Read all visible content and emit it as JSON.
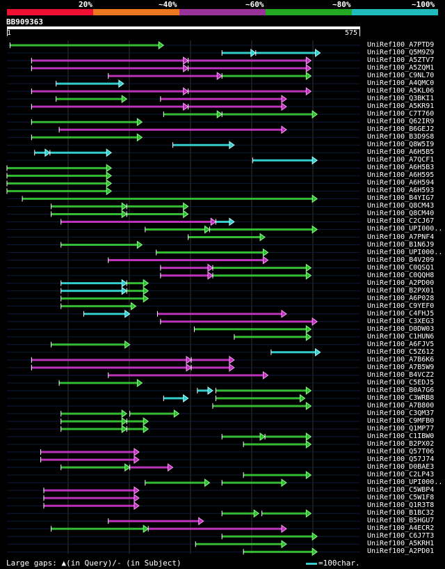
{
  "legend": {
    "colors": [
      "#ee1133",
      "#ee7722",
      "#993399",
      "#22aa22",
      "#22bbbb"
    ],
    "labels": [
      "20%",
      "~40%",
      "~60%",
      "~80%",
      "~100%"
    ]
  },
  "query": {
    "id": "BB909363",
    "start": "1",
    "end": "575",
    "length": 575
  },
  "colors": {
    "green": "#33bb33",
    "magenta": "#bb33bb",
    "cyan": "#33cccc",
    "greenHead": "#88ff88",
    "magentaHead": "#ff99ff",
    "cyanHead": "#aaffff"
  },
  "hits": [
    {
      "id": "UniRef100_A7PTD9",
      "segs": [
        [
          5,
          255,
          "g"
        ]
      ]
    },
    {
      "id": "UniRef100_Q5M9Z9",
      "segs": [
        [
          350,
          405,
          "c"
        ],
        [
          405,
          510,
          "c"
        ]
      ]
    },
    {
      "id": "UniRef100_A5ZTV7",
      "segs": [
        [
          40,
          295,
          "m"
        ],
        [
          295,
          495,
          "m"
        ]
      ]
    },
    {
      "id": "UniRef100_A5ZQM1",
      "segs": [
        [
          40,
          295,
          "m"
        ],
        [
          295,
          495,
          "m"
        ]
      ]
    },
    {
      "id": "UniRef100_C9NL70",
      "segs": [
        [
          165,
          350,
          "m"
        ],
        [
          350,
          495,
          "g"
        ]
      ]
    },
    {
      "id": "UniRef100_A4QMC0",
      "segs": [
        [
          80,
          190,
          "c"
        ]
      ]
    },
    {
      "id": "UniRef100_A5KL06",
      "segs": [
        [
          40,
          295,
          "m"
        ],
        [
          295,
          495,
          "m"
        ]
      ]
    },
    {
      "id": "UniRef100_Q3BKI1",
      "segs": [
        [
          80,
          195,
          "g"
        ],
        [
          250,
          455,
          "m"
        ]
      ]
    },
    {
      "id": "UniRef100_A5KR91",
      "segs": [
        [
          40,
          295,
          "m"
        ],
        [
          295,
          455,
          "m"
        ]
      ]
    },
    {
      "id": "UniRef100_C7T760",
      "segs": [
        [
          255,
          350,
          "g"
        ],
        [
          350,
          505,
          "g"
        ]
      ]
    },
    {
      "id": "UniRef100_Q62IR9",
      "segs": [
        [
          40,
          220,
          "g"
        ]
      ]
    },
    {
      "id": "UniRef100_B6GEJ2",
      "segs": [
        [
          85,
          455,
          "m"
        ]
      ]
    },
    {
      "id": "UniRef100_B3D9S8",
      "segs": [
        [
          40,
          220,
          "g"
        ]
      ]
    },
    {
      "id": "UniRef100_Q8W5I9",
      "segs": [
        [
          270,
          370,
          "c"
        ]
      ]
    },
    {
      "id": "UniRef100_A6H5B5",
      "segs": [
        [
          45,
          70,
          "c"
        ],
        [
          70,
          170,
          "c"
        ]
      ]
    },
    {
      "id": "UniRef100_A7QCF1",
      "segs": [
        [
          400,
          505,
          "c"
        ]
      ]
    },
    {
      "id": "UniRef100_A6H5B3",
      "segs": [
        [
          0,
          170,
          "g"
        ]
      ]
    },
    {
      "id": "UniRef100_A6H595",
      "segs": [
        [
          0,
          170,
          "g"
        ]
      ]
    },
    {
      "id": "UniRef100_A6H594",
      "segs": [
        [
          0,
          170,
          "g"
        ]
      ]
    },
    {
      "id": "UniRef100_A6H593",
      "segs": [
        [
          0,
          170,
          "g"
        ]
      ]
    },
    {
      "id": "UniRef100_B4YIG7",
      "segs": [
        [
          25,
          505,
          "g"
        ]
      ]
    },
    {
      "id": "UniRef100_Q8CM43",
      "segs": [
        [
          72,
          195,
          "g"
        ],
        [
          195,
          295,
          "g"
        ]
      ]
    },
    {
      "id": "UniRef100_Q8CM40",
      "segs": [
        [
          72,
          195,
          "g"
        ],
        [
          195,
          295,
          "g"
        ]
      ]
    },
    {
      "id": "UniRef100_C2CJ67",
      "segs": [
        [
          88,
          340,
          "m"
        ],
        [
          340,
          370,
          "c"
        ]
      ]
    },
    {
      "id": "UniRef100_UPI000..",
      "segs": [
        [
          225,
          330,
          "g"
        ],
        [
          330,
          505,
          "g"
        ]
      ]
    },
    {
      "id": "UniRef100_A7PNF4",
      "segs": [
        [
          295,
          420,
          "g"
        ]
      ]
    },
    {
      "id": "UniRef100_B1N6J9",
      "segs": [
        [
          88,
          220,
          "g"
        ]
      ]
    },
    {
      "id": "UniRef100_UPI000..",
      "segs": [
        [
          243,
          425,
          "g"
        ]
      ]
    },
    {
      "id": "UniRef100_B4V209",
      "segs": [
        [
          165,
          425,
          "m"
        ]
      ]
    },
    {
      "id": "UniRef100_C0QSQ1",
      "segs": [
        [
          250,
          335,
          "m"
        ],
        [
          335,
          495,
          "g"
        ]
      ]
    },
    {
      "id": "UniRef100_C0QQH8",
      "segs": [
        [
          250,
          335,
          "m"
        ],
        [
          335,
          495,
          "g"
        ]
      ]
    },
    {
      "id": "UniRef100_A2PD00",
      "segs": [
        [
          88,
          195,
          "c"
        ],
        [
          195,
          230,
          "g"
        ]
      ]
    },
    {
      "id": "UniRef100_B2PX01",
      "segs": [
        [
          88,
          195,
          "c"
        ],
        [
          195,
          230,
          "g"
        ]
      ]
    },
    {
      "id": "UniRef100_A6P028",
      "segs": [
        [
          88,
          230,
          "g"
        ]
      ]
    },
    {
      "id": "UniRef100_C9YEF0",
      "segs": [
        [
          88,
          210,
          "g"
        ]
      ]
    },
    {
      "id": "UniRef100_C4FHJ5",
      "segs": [
        [
          125,
          200,
          "c"
        ],
        [
          245,
          455,
          "m"
        ]
      ]
    },
    {
      "id": "UniRef100_C3XEG3",
      "segs": [
        [
          250,
          505,
          "m"
        ]
      ]
    },
    {
      "id": "UniRef100_D0DW03",
      "segs": [
        [
          305,
          495,
          "g"
        ]
      ]
    },
    {
      "id": "UniRef100_C1HUN6",
      "segs": [
        [
          370,
          495,
          "g"
        ]
      ]
    },
    {
      "id": "UniRef100_A6FJV5",
      "segs": [
        [
          72,
          200,
          "g"
        ]
      ]
    },
    {
      "id": "UniRef100_C5Z612",
      "segs": [
        [
          430,
          510,
          "c"
        ]
      ]
    },
    {
      "id": "UniRef100_A7B6K6",
      "segs": [
        [
          40,
          300,
          "m"
        ],
        [
          300,
          370,
          "m"
        ]
      ]
    },
    {
      "id": "UniRef100_A7B5W9",
      "segs": [
        [
          40,
          300,
          "m"
        ],
        [
          300,
          370,
          "m"
        ]
      ]
    },
    {
      "id": "UniRef100_B4VCZ2",
      "segs": [
        [
          165,
          425,
          "m"
        ]
      ]
    },
    {
      "id": "UniRef100_C5EDJ5",
      "segs": [
        [
          85,
          220,
          "g"
        ]
      ]
    },
    {
      "id": "UniRef100_B0A7G6",
      "segs": [
        [
          310,
          335,
          "c"
        ],
        [
          340,
          495,
          "g"
        ]
      ]
    },
    {
      "id": "UniRef100_C3WRB8",
      "segs": [
        [
          255,
          295,
          "c"
        ],
        [
          340,
          485,
          "g"
        ]
      ]
    },
    {
      "id": "UniRef100_A7B800",
      "segs": [
        [
          335,
          495,
          "g"
        ]
      ]
    },
    {
      "id": "UniRef100_C3QM37",
      "segs": [
        [
          88,
          195,
          "g"
        ],
        [
          200,
          280,
          "g"
        ]
      ]
    },
    {
      "id": "UniRef100_C9MFB0",
      "segs": [
        [
          88,
          195,
          "g"
        ],
        [
          195,
          230,
          "g"
        ]
      ]
    },
    {
      "id": "UniRef100_Q1MP77",
      "segs": [
        [
          88,
          195,
          "g"
        ],
        [
          195,
          230,
          "g"
        ]
      ]
    },
    {
      "id": "UniRef100_C1IBW0",
      "segs": [
        [
          350,
          420,
          "g"
        ],
        [
          420,
          495,
          "g"
        ]
      ]
    },
    {
      "id": "UniRef100_B2PX02",
      "segs": [
        [
          385,
          495,
          "g"
        ]
      ]
    },
    {
      "id": "UniRef100_Q57T06",
      "segs": [
        [
          55,
          215,
          "m"
        ]
      ]
    },
    {
      "id": "UniRef100_Q57J74",
      "segs": [
        [
          55,
          215,
          "m"
        ]
      ]
    },
    {
      "id": "UniRef100_D0BAE3",
      "segs": [
        [
          88,
          200,
          "g"
        ],
        [
          200,
          270,
          "m"
        ]
      ]
    },
    {
      "id": "UniRef100_C2LP43",
      "segs": [
        [
          385,
          495,
          "g"
        ]
      ]
    },
    {
      "id": "UniRef100_UPI000..",
      "segs": [
        [
          225,
          330,
          "g"
        ],
        [
          350,
          455,
          "g"
        ]
      ]
    },
    {
      "id": "UniRef100_C5WBP4",
      "segs": [
        [
          60,
          215,
          "m"
        ]
      ]
    },
    {
      "id": "UniRef100_C5W1F8",
      "segs": [
        [
          60,
          215,
          "m"
        ]
      ]
    },
    {
      "id": "UniRef100_Q1R3T8",
      "segs": [
        [
          60,
          215,
          "m"
        ]
      ]
    },
    {
      "id": "UniRef100_B1BC32",
      "segs": [
        [
          350,
          410,
          "g"
        ],
        [
          415,
          495,
          "g"
        ]
      ]
    },
    {
      "id": "UniRef100_B5HGU7",
      "segs": [
        [
          165,
          320,
          "m"
        ]
      ]
    },
    {
      "id": "UniRef100_A4ECR2",
      "segs": [
        [
          72,
          230,
          "g"
        ],
        [
          230,
          455,
          "m"
        ]
      ]
    },
    {
      "id": "UniRef100_C6J7T3",
      "segs": [
        [
          350,
          505,
          "g"
        ]
      ]
    },
    {
      "id": "UniRef100_A5KRH1",
      "segs": [
        [
          307,
          455,
          "g"
        ]
      ]
    },
    {
      "id": "UniRef100_A2PD01",
      "segs": [
        [
          385,
          505,
          "g"
        ]
      ]
    }
  ],
  "footer": {
    "text": "Large gaps: ▲(in Query)/- (in Subject)",
    "scale_label": "=100char."
  }
}
